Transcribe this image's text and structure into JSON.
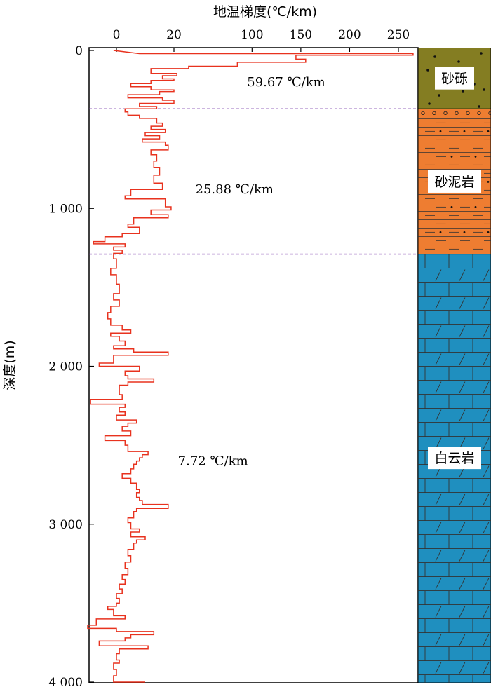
{
  "chart_data": {
    "type": "line",
    "orientation": "vertical-profile",
    "xlabel": "地温梯度(℃/km)",
    "ylabel": "深度(m)",
    "xlim": [
      -5,
      265
    ],
    "ylim": [
      0,
      4000
    ],
    "x_ticks": [
      0,
      20,
      100,
      150,
      200,
      250
    ],
    "x_tick_labels": [
      "0",
      "20",
      "100",
      "150",
      "200",
      "250"
    ],
    "y_ticks": [
      0,
      1000,
      2000,
      3000,
      4000
    ],
    "y_tick_labels": [
      "0",
      "1 000",
      "2 000",
      "3 000",
      "4 000"
    ],
    "series": [
      {
        "color": "#e8321e",
        "profile": [
          [
            0,
            -1
          ],
          [
            20,
            8
          ],
          [
            20,
            265
          ],
          [
            30,
            265
          ],
          [
            30,
            145
          ],
          [
            55,
            145
          ],
          [
            55,
            155
          ],
          [
            75,
            155
          ],
          [
            75,
            85
          ],
          [
            100,
            85
          ],
          [
            100,
            35
          ],
          [
            115,
            35
          ],
          [
            115,
            12
          ],
          [
            145,
            12
          ],
          [
            145,
            23
          ],
          [
            160,
            23
          ],
          [
            160,
            16
          ],
          [
            180,
            16
          ],
          [
            180,
            20
          ],
          [
            190,
            20
          ],
          [
            190,
            12
          ],
          [
            210,
            12
          ],
          [
            210,
            5
          ],
          [
            230,
            5
          ],
          [
            230,
            12
          ],
          [
            250,
            12
          ],
          [
            250,
            20
          ],
          [
            260,
            20
          ],
          [
            260,
            15
          ],
          [
            280,
            15
          ],
          [
            280,
            4
          ],
          [
            300,
            4
          ],
          [
            300,
            16
          ],
          [
            315,
            16
          ],
          [
            315,
            20
          ],
          [
            335,
            20
          ],
          [
            335,
            8
          ],
          [
            355,
            8
          ],
          [
            355,
            14
          ],
          [
            370,
            14
          ],
          [
            370,
            3
          ],
          [
            390,
            3
          ],
          [
            390,
            4
          ],
          [
            410,
            4
          ],
          [
            410,
            8
          ],
          [
            430,
            8
          ],
          [
            430,
            14
          ],
          [
            460,
            14
          ],
          [
            460,
            16
          ],
          [
            480,
            16
          ],
          [
            480,
            12
          ],
          [
            500,
            12
          ],
          [
            500,
            17
          ],
          [
            520,
            17
          ],
          [
            520,
            10
          ],
          [
            540,
            10
          ],
          [
            540,
            15
          ],
          [
            560,
            15
          ],
          [
            560,
            9
          ],
          [
            580,
            9
          ],
          [
            580,
            17
          ],
          [
            600,
            17
          ],
          [
            600,
            18
          ],
          [
            630,
            18
          ],
          [
            630,
            12
          ],
          [
            660,
            12
          ],
          [
            660,
            14
          ],
          [
            700,
            14
          ],
          [
            700,
            13
          ],
          [
            740,
            13
          ],
          [
            740,
            15
          ],
          [
            790,
            15
          ],
          [
            790,
            13
          ],
          [
            840,
            13
          ],
          [
            840,
            16
          ],
          [
            880,
            16
          ],
          [
            880,
            5
          ],
          [
            920,
            5
          ],
          [
            920,
            3
          ],
          [
            940,
            3
          ],
          [
            940,
            17
          ],
          [
            990,
            17
          ],
          [
            990,
            19
          ],
          [
            1010,
            19
          ],
          [
            1010,
            12
          ],
          [
            1040,
            12
          ],
          [
            1040,
            18
          ],
          [
            1060,
            18
          ],
          [
            1060,
            6
          ],
          [
            1100,
            6
          ],
          [
            1100,
            4
          ],
          [
            1120,
            4
          ],
          [
            1120,
            8
          ],
          [
            1160,
            8
          ],
          [
            1160,
            2
          ],
          [
            1180,
            2
          ],
          [
            1180,
            -4
          ],
          [
            1210,
            -4
          ],
          [
            1210,
            -8
          ],
          [
            1225,
            -8
          ],
          [
            1225,
            3
          ],
          [
            1245,
            3
          ],
          [
            1245,
            -1
          ],
          [
            1265,
            -1
          ],
          [
            1265,
            2
          ],
          [
            1285,
            2
          ],
          [
            1285,
            -1
          ],
          [
            1320,
            -1
          ],
          [
            1320,
            0
          ],
          [
            1380,
            0
          ],
          [
            1380,
            -2
          ],
          [
            1420,
            -2
          ],
          [
            1420,
            0
          ],
          [
            1480,
            0
          ],
          [
            1480,
            1
          ],
          [
            1540,
            1
          ],
          [
            1540,
            -1
          ],
          [
            1580,
            -1
          ],
          [
            1580,
            1
          ],
          [
            1620,
            1
          ],
          [
            1620,
            -2
          ],
          [
            1660,
            -2
          ],
          [
            1660,
            -3
          ],
          [
            1700,
            -3
          ],
          [
            1700,
            -2
          ],
          [
            1740,
            -2
          ],
          [
            1740,
            2
          ],
          [
            1770,
            2
          ],
          [
            1770,
            5
          ],
          [
            1790,
            5
          ],
          [
            1790,
            -2
          ],
          [
            1810,
            -2
          ],
          [
            1810,
            1
          ],
          [
            1840,
            1
          ],
          [
            1840,
            3
          ],
          [
            1870,
            3
          ],
          [
            1870,
            -1
          ],
          [
            1890,
            -1
          ],
          [
            1890,
            6
          ],
          [
            1910,
            6
          ],
          [
            1910,
            18
          ],
          [
            1930,
            18
          ],
          [
            1930,
            -1
          ],
          [
            1980,
            -1
          ],
          [
            1980,
            -6
          ],
          [
            2000,
            -6
          ],
          [
            2000,
            8
          ],
          [
            2030,
            8
          ],
          [
            2030,
            3
          ],
          [
            2060,
            3
          ],
          [
            2060,
            4
          ],
          [
            2080,
            4
          ],
          [
            2080,
            13
          ],
          [
            2100,
            13
          ],
          [
            2100,
            4
          ],
          [
            2120,
            4
          ],
          [
            2120,
            1
          ],
          [
            2180,
            1
          ],
          [
            2180,
            2
          ],
          [
            2210,
            2
          ],
          [
            2210,
            -9
          ],
          [
            2240,
            -9
          ],
          [
            2240,
            3
          ],
          [
            2260,
            3
          ],
          [
            2260,
            1
          ],
          [
            2290,
            1
          ],
          [
            2290,
            3
          ],
          [
            2310,
            3
          ],
          [
            2310,
            0
          ],
          [
            2340,
            0
          ],
          [
            2340,
            7
          ],
          [
            2360,
            7
          ],
          [
            2360,
            4
          ],
          [
            2380,
            4
          ],
          [
            2380,
            2
          ],
          [
            2410,
            2
          ],
          [
            2410,
            5
          ],
          [
            2440,
            5
          ],
          [
            2440,
            -4
          ],
          [
            2470,
            -4
          ],
          [
            2470,
            3
          ],
          [
            2500,
            3
          ],
          [
            2500,
            4
          ],
          [
            2540,
            4
          ],
          [
            2540,
            11
          ],
          [
            2560,
            11
          ],
          [
            2560,
            9
          ],
          [
            2580,
            9
          ],
          [
            2580,
            8
          ],
          [
            2600,
            8
          ],
          [
            2600,
            7
          ],
          [
            2620,
            7
          ],
          [
            2620,
            6
          ],
          [
            2650,
            6
          ],
          [
            2650,
            5
          ],
          [
            2680,
            5
          ],
          [
            2680,
            2
          ],
          [
            2710,
            2
          ],
          [
            2710,
            5
          ],
          [
            2740,
            5
          ],
          [
            2740,
            7
          ],
          [
            2780,
            7
          ],
          [
            2780,
            8
          ],
          [
            2800,
            8
          ],
          [
            2800,
            7
          ],
          [
            2830,
            7
          ],
          [
            2830,
            8
          ],
          [
            2850,
            8
          ],
          [
            2850,
            9
          ],
          [
            2875,
            9
          ],
          [
            2875,
            18
          ],
          [
            2900,
            18
          ],
          [
            2900,
            7
          ],
          [
            2920,
            7
          ],
          [
            2920,
            6
          ],
          [
            2960,
            6
          ],
          [
            2960,
            4
          ],
          [
            2990,
            4
          ],
          [
            2990,
            5
          ],
          [
            3030,
            5
          ],
          [
            3030,
            8
          ],
          [
            3050,
            8
          ],
          [
            3050,
            5
          ],
          [
            3080,
            5
          ],
          [
            3080,
            10
          ],
          [
            3100,
            10
          ],
          [
            3100,
            7
          ],
          [
            3120,
            7
          ],
          [
            3120,
            6
          ],
          [
            3160,
            6
          ],
          [
            3160,
            4
          ],
          [
            3200,
            4
          ],
          [
            3200,
            5
          ],
          [
            3240,
            5
          ],
          [
            3240,
            3
          ],
          [
            3280,
            3
          ],
          [
            3280,
            4
          ],
          [
            3320,
            4
          ],
          [
            3320,
            2
          ],
          [
            3350,
            2
          ],
          [
            3350,
            3
          ],
          [
            3380,
            3
          ],
          [
            3380,
            1
          ],
          [
            3410,
            1
          ],
          [
            3410,
            2
          ],
          [
            3440,
            2
          ],
          [
            3440,
            0
          ],
          [
            3470,
            0
          ],
          [
            3470,
            1
          ],
          [
            3500,
            1
          ],
          [
            3500,
            0
          ],
          [
            3520,
            0
          ],
          [
            3520,
            -3
          ],
          [
            3540,
            -3
          ],
          [
            3540,
            -1
          ],
          [
            3580,
            -1
          ],
          [
            3580,
            3
          ],
          [
            3600,
            3
          ],
          [
            3600,
            -7
          ],
          [
            3640,
            -7
          ],
          [
            3640,
            -10
          ],
          [
            3660,
            -10
          ],
          [
            3660,
            0
          ],
          [
            3680,
            0
          ],
          [
            3680,
            13
          ],
          [
            3700,
            13
          ],
          [
            3700,
            5
          ],
          [
            3720,
            5
          ],
          [
            3720,
            3
          ],
          [
            3740,
            3
          ],
          [
            3740,
            -6
          ],
          [
            3770,
            -6
          ],
          [
            3770,
            11
          ],
          [
            3790,
            11
          ],
          [
            3790,
            1
          ],
          [
            3820,
            1
          ],
          [
            3820,
            0
          ],
          [
            3860,
            0
          ],
          [
            3860,
            1
          ],
          [
            3880,
            1
          ],
          [
            3880,
            -1
          ],
          [
            3920,
            -1
          ],
          [
            3920,
            0
          ],
          [
            3960,
            0
          ],
          [
            3960,
            -1
          ],
          [
            4000,
            -1
          ],
          [
            4000,
            10
          ]
        ]
      }
    ],
    "boundaries": [
      370,
      1290
    ],
    "annotations": [
      {
        "text": "59.67 ℃/km",
        "depth": 200,
        "gradient": 135
      },
      {
        "text": "25.88 ℃/km",
        "depth": 880,
        "gradient": 82
      },
      {
        "text": "7.72 ℃/km",
        "depth": 2600,
        "gradient": 60
      }
    ],
    "lithology": [
      {
        "name": "砂砾",
        "top": 0,
        "bottom": 370,
        "color": "#847d22",
        "pattern": "dots"
      },
      {
        "name": "砂泥岩",
        "top": 370,
        "bottom": 1290,
        "color": "#ee7d31",
        "pattern": "sand-mud"
      },
      {
        "name": "白云岩",
        "top": 1290,
        "bottom": 4000,
        "color": "#1f8fbf",
        "pattern": "dolomite"
      }
    ]
  }
}
